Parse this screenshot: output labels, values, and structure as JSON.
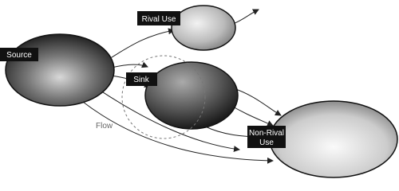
{
  "nodes": [
    {
      "label": "Source"
    },
    {
      "label": "Rival Use"
    },
    {
      "label": "Sink"
    },
    {
      "label_lines": [
        "Non-Rival",
        "Use"
      ]
    }
  ],
  "flow_label": "Flow"
}
